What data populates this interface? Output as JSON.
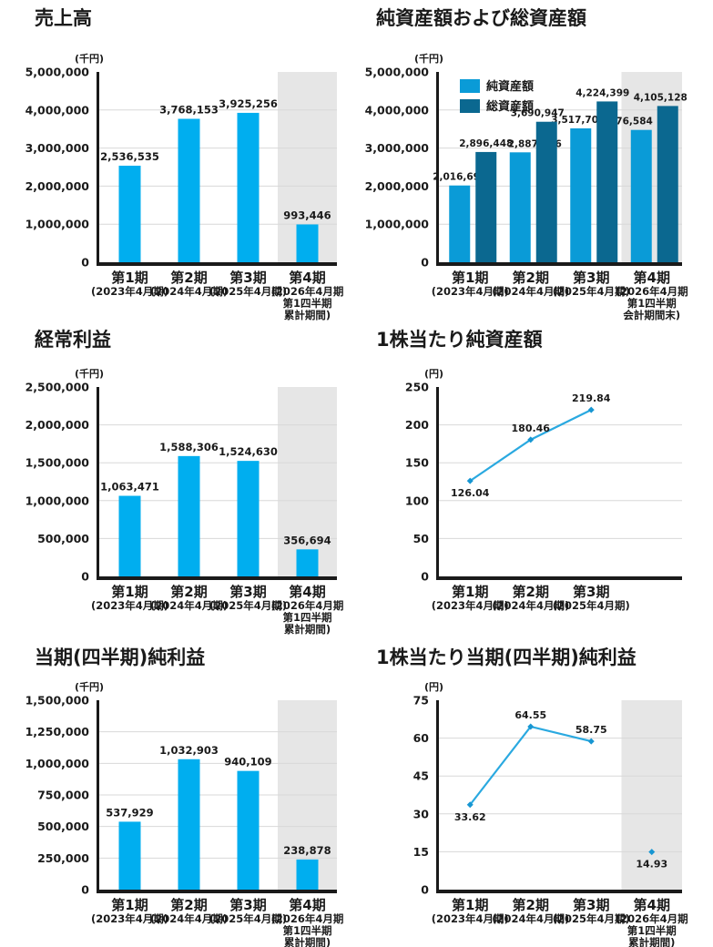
{
  "page": {
    "type": "financial-highlights",
    "background": "#FFFFFF"
  },
  "colors": {
    "bar_cyan": "#00AEEF",
    "bar_light_series": "#0A9BD7",
    "bar_dark_series": "#0B6890",
    "line": "#2AA9E0",
    "marker": "#1796D2",
    "highlight_band": "#E6E6E6",
    "gridline": "#D8D8D8",
    "axis": "#1A1A1A",
    "text": "#1A1A1A"
  },
  "chart_data": [
    {
      "key": "net-sales",
      "title": "売上高",
      "type": "bar",
      "unit": "(千円)",
      "color_key": "bar_cyan",
      "y_axis": {
        "min": 0,
        "max": 5000000,
        "ticks": [
          0,
          1000000,
          2000000,
          3000000,
          4000000,
          5000000
        ],
        "tick_labels": [
          "0",
          "1,000,000",
          "2,000,000",
          "3,000,000",
          "4,000,000",
          "5,000,000"
        ],
        "grid": true
      },
      "categories": [
        {
          "name": "第1期",
          "sub": [
            "(2023年4月期)"
          ]
        },
        {
          "name": "第2期",
          "sub": [
            "(2024年4月期)"
          ]
        },
        {
          "name": "第3期",
          "sub": [
            "(2025年4月期)"
          ]
        },
        {
          "name": "第4期",
          "sub": [
            "(2026年4月期",
            "第1四半期",
            "累計期間)"
          ]
        }
      ],
      "values": [
        2536535,
        3768153,
        3925256,
        993446
      ],
      "value_labels": [
        "2,536,535",
        "3,768,153",
        "3,925,256",
        "993,446"
      ],
      "highlight_last_period": true
    },
    {
      "key": "net-assets-and-total-assets",
      "title": "純資産額および総資産額",
      "type": "grouped-bar",
      "unit": "(千円)",
      "y_axis": {
        "min": 0,
        "max": 5000000,
        "ticks": [
          0,
          1000000,
          2000000,
          3000000,
          4000000,
          5000000
        ],
        "tick_labels": [
          "0",
          "1,000,000",
          "2,000,000",
          "3,000,000",
          "4,000,000",
          "5,000,000"
        ],
        "grid": true
      },
      "legend_position": "top-left",
      "series": [
        {
          "name": "純資産額",
          "color_key": "bar_light_series",
          "values": [
            2016692,
            2887596,
            3517705,
            3476584
          ],
          "value_labels": [
            "2,016,692",
            "2,887,596",
            "3,517,705",
            "3,476,584"
          ]
        },
        {
          "name": "総資産額",
          "color_key": "bar_dark_series",
          "values": [
            2896448,
            3690947,
            4224399,
            4105128
          ],
          "value_labels": [
            "2,896,448",
            "3,690,947",
            "4,224,399",
            "4,105,128"
          ]
        }
      ],
      "categories": [
        {
          "name": "第1期",
          "sub": [
            "(2023年4月期)"
          ]
        },
        {
          "name": "第2期",
          "sub": [
            "(2024年4月期)"
          ]
        },
        {
          "name": "第3期",
          "sub": [
            "(2025年4月期)"
          ]
        },
        {
          "name": "第4期",
          "sub": [
            "(2026年4月期",
            "第1四半期",
            "会計期間末)"
          ]
        }
      ],
      "highlight_last_period": true
    },
    {
      "key": "ordinary-income",
      "title": "経常利益",
      "type": "bar",
      "unit": "(千円)",
      "color_key": "bar_cyan",
      "y_axis": {
        "min": 0,
        "max": 2500000,
        "ticks": [
          0,
          500000,
          1000000,
          1500000,
          2000000,
          2500000
        ],
        "tick_labels": [
          "0",
          "500,000",
          "1,000,000",
          "1,500,000",
          "2,000,000",
          "2,500,000"
        ],
        "grid": true
      },
      "categories": [
        {
          "name": "第1期",
          "sub": [
            "(2023年4月期)"
          ]
        },
        {
          "name": "第2期",
          "sub": [
            "(2024年4月期)"
          ]
        },
        {
          "name": "第3期",
          "sub": [
            "(2025年4月期)"
          ]
        },
        {
          "name": "第4期",
          "sub": [
            "(2026年4月期",
            "第1四半期",
            "累計期間)"
          ]
        }
      ],
      "values": [
        1063471,
        1588306,
        1524630,
        356694
      ],
      "value_labels": [
        "1,063,471",
        "1,588,306",
        "1,524,630",
        "356,694"
      ],
      "highlight_last_period": true
    },
    {
      "key": "net-assets-per-share",
      "title": "1株当たり純資産額",
      "type": "line",
      "unit": "(円)",
      "y_axis": {
        "min": 0,
        "max": 250,
        "ticks": [
          0,
          50,
          100,
          150,
          200,
          250
        ],
        "tick_labels": [
          "0",
          "50",
          "100",
          "150",
          "200",
          "250"
        ],
        "grid": true
      },
      "categories": [
        {
          "name": "第1期",
          "sub": [
            "(2023年4月期)"
          ]
        },
        {
          "name": "第2期",
          "sub": [
            "(2024年4月期)"
          ]
        },
        {
          "name": "第3期",
          "sub": [
            "(2025年4月期)"
          ]
        }
      ],
      "values": [
        126.04,
        180.46,
        219.84
      ],
      "value_labels": [
        "126.04",
        "180.46",
        "219.84"
      ],
      "label_positions": [
        "below",
        "above",
        "above"
      ],
      "connect_points": 3,
      "highlight_last_period": false
    },
    {
      "key": "net-income",
      "title": "当期(四半期)純利益",
      "type": "bar",
      "unit": "(千円)",
      "color_key": "bar_cyan",
      "y_axis": {
        "min": 0,
        "max": 1500000,
        "ticks": [
          0,
          250000,
          500000,
          750000,
          1000000,
          1250000,
          1500000
        ],
        "tick_labels": [
          "0",
          "250,000",
          "500,000",
          "750,000",
          "1,000,000",
          "1,250,000",
          "1,500,000"
        ],
        "grid": true
      },
      "categories": [
        {
          "name": "第1期",
          "sub": [
            "(2023年4月期)"
          ]
        },
        {
          "name": "第2期",
          "sub": [
            "(2024年4月期)"
          ]
        },
        {
          "name": "第3期",
          "sub": [
            "(2025年4月期)"
          ]
        },
        {
          "name": "第4期",
          "sub": [
            "(2026年4月期",
            "第1四半期",
            "累計期間)"
          ]
        }
      ],
      "values": [
        537929,
        1032903,
        940109,
        238878
      ],
      "value_labels": [
        "537,929",
        "1,032,903",
        "940,109",
        "238,878"
      ],
      "highlight_last_period": true
    },
    {
      "key": "net-income-per-share",
      "title": "1株当たり当期(四半期)純利益",
      "type": "line",
      "unit": "(円)",
      "y_axis": {
        "min": 0,
        "max": 75,
        "ticks": [
          0,
          15,
          30,
          45,
          60,
          75
        ],
        "tick_labels": [
          "0",
          "15",
          "30",
          "45",
          "60",
          "75"
        ],
        "grid": true
      },
      "categories": [
        {
          "name": "第1期",
          "sub": [
            "(2023年4月期)"
          ]
        },
        {
          "name": "第2期",
          "sub": [
            "(2024年4月期)"
          ]
        },
        {
          "name": "第3期",
          "sub": [
            "(2025年4月期)"
          ]
        },
        {
          "name": "第4期",
          "sub": [
            "(2026年4月期",
            "第1四半期",
            "累計期間)"
          ]
        }
      ],
      "values": [
        33.62,
        64.55,
        58.75,
        14.93
      ],
      "value_labels": [
        "33.62",
        "64.55",
        "58.75",
        "14.93"
      ],
      "label_positions": [
        "below",
        "above",
        "above",
        "below"
      ],
      "connect_points": 3,
      "highlight_last_period": true
    }
  ]
}
